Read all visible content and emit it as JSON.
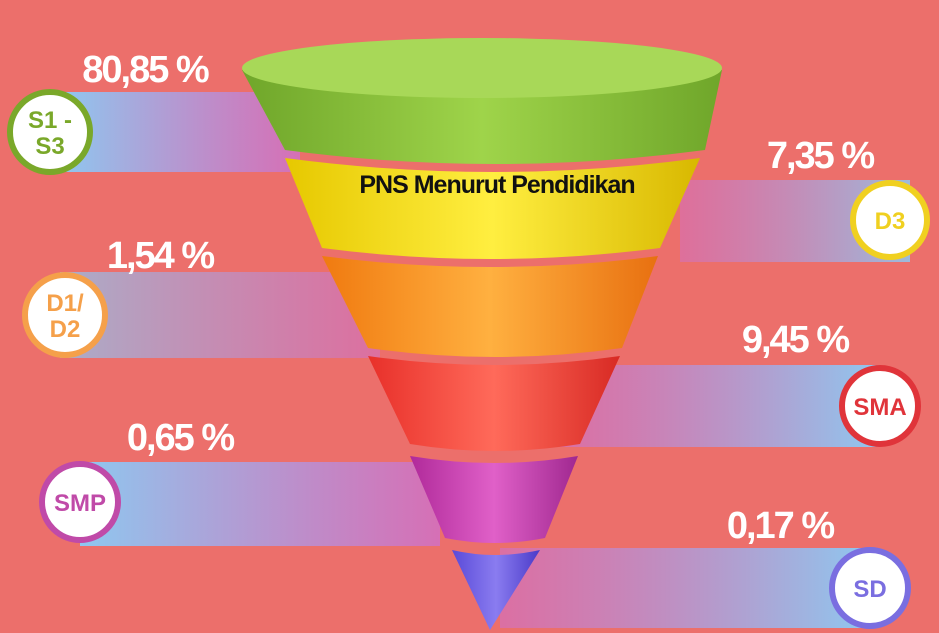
{
  "title": "PNS Menurut Pendidikan",
  "items": [
    {
      "label_lines": [
        "S1 -",
        "S3"
      ],
      "value_label": "80,85 %",
      "color": "#7aa82a"
    },
    {
      "label_lines": [
        "D3"
      ],
      "value_label": "7,35 %",
      "color": "#f0d020"
    },
    {
      "label_lines": [
        "D1/",
        "D2"
      ],
      "value_label": "1,54 %",
      "color": "#f5a04a"
    },
    {
      "label_lines": [
        "SMA"
      ],
      "value_label": "9,45 %",
      "color": "#e0343a"
    },
    {
      "label_lines": [
        "SMP"
      ],
      "value_label": "0,65 %",
      "color": "#c04aa8"
    },
    {
      "label_lines": [
        "SD"
      ],
      "value_label": "0,17 %",
      "color": "#7a6ee0"
    }
  ]
}
